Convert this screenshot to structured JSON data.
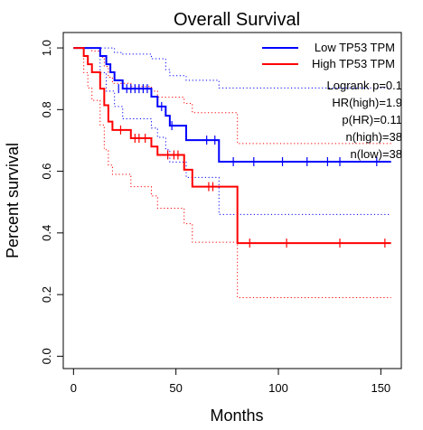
{
  "chart_data": {
    "type": "line",
    "subtype": "kaplan-meier",
    "title": "Overall Survival",
    "xlabel": "Months",
    "ylabel": "Percent survival",
    "xlim": [
      -5,
      160
    ],
    "ylim": [
      -0.04,
      1.05
    ],
    "x_ticks": [
      0,
      50,
      100,
      150
    ],
    "y_ticks": [
      0.0,
      0.2,
      0.4,
      0.6,
      0.8,
      1.0
    ],
    "x_tick_labels": [
      "0",
      "50",
      "100",
      "150"
    ],
    "y_tick_labels": [
      "0.0",
      "0.2",
      "0.4",
      "0.6",
      "0.8",
      "1.0"
    ],
    "grid": false,
    "legend_position": "top-right",
    "series": [
      {
        "name": "Low TP53 TPM",
        "color": "#0000ff",
        "steps": [
          [
            0,
            1.0
          ],
          [
            13,
            0.974
          ],
          [
            16,
            0.947
          ],
          [
            18,
            0.921
          ],
          [
            20,
            0.895
          ],
          [
            24,
            0.868
          ],
          [
            38,
            0.842
          ],
          [
            41,
            0.81
          ],
          [
            45,
            0.78
          ],
          [
            47,
            0.748
          ],
          [
            55,
            0.701
          ],
          [
            71,
            0.631
          ],
          [
            155,
            0.631
          ]
        ],
        "censored": [
          [
            22,
            0.868
          ],
          [
            26,
            0.868
          ],
          [
            28,
            0.868
          ],
          [
            30,
            0.868
          ],
          [
            32,
            0.868
          ],
          [
            34,
            0.868
          ],
          [
            36,
            0.868
          ],
          [
            43,
            0.81
          ],
          [
            48,
            0.748
          ],
          [
            65,
            0.701
          ],
          [
            69,
            0.701
          ],
          [
            78,
            0.631
          ],
          [
            88,
            0.631
          ],
          [
            102,
            0.631
          ],
          [
            114,
            0.631
          ],
          [
            124,
            0.631
          ],
          [
            130,
            0.631
          ],
          [
            148,
            0.631
          ]
        ],
        "ci_upper": [
          [
            0,
            1.0
          ],
          [
            15,
            1.0
          ],
          [
            20,
            0.985
          ],
          [
            24,
            0.98
          ],
          [
            38,
            0.965
          ],
          [
            45,
            0.93
          ],
          [
            47,
            0.91
          ],
          [
            55,
            0.895
          ],
          [
            71,
            0.87
          ],
          [
            155,
            0.87
          ]
        ],
        "ci_lower": [
          [
            0,
            1.0
          ],
          [
            13,
            0.92
          ],
          [
            16,
            0.86
          ],
          [
            20,
            0.81
          ],
          [
            24,
            0.77
          ],
          [
            38,
            0.74
          ],
          [
            41,
            0.71
          ],
          [
            45,
            0.67
          ],
          [
            47,
            0.63
          ],
          [
            55,
            0.58
          ],
          [
            71,
            0.46
          ],
          [
            155,
            0.46
          ]
        ]
      },
      {
        "name": "High TP53 TPM",
        "color": "#ff0000",
        "steps": [
          [
            0,
            1.0
          ],
          [
            5,
            0.974
          ],
          [
            7,
            0.947
          ],
          [
            9,
            0.921
          ],
          [
            13,
            0.868
          ],
          [
            15,
            0.814
          ],
          [
            17,
            0.761
          ],
          [
            19,
            0.734
          ],
          [
            28,
            0.707
          ],
          [
            38,
            0.68
          ],
          [
            41,
            0.653
          ],
          [
            54,
            0.605
          ],
          [
            58,
            0.55
          ],
          [
            80,
            0.367
          ],
          [
            155,
            0.367
          ]
        ],
        "censored": [
          [
            23,
            0.734
          ],
          [
            30,
            0.707
          ],
          [
            32,
            0.707
          ],
          [
            35,
            0.707
          ],
          [
            46,
            0.653
          ],
          [
            49,
            0.653
          ],
          [
            51,
            0.653
          ],
          [
            66,
            0.55
          ],
          [
            68,
            0.55
          ],
          [
            86,
            0.367
          ],
          [
            104,
            0.367
          ],
          [
            130,
            0.367
          ],
          [
            152,
            0.367
          ]
        ],
        "ci_upper": [
          [
            0,
            1.0
          ],
          [
            5,
            1.0
          ],
          [
            9,
            0.99
          ],
          [
            13,
            0.97
          ],
          [
            15,
            0.94
          ],
          [
            17,
            0.905
          ],
          [
            19,
            0.885
          ],
          [
            28,
            0.875
          ],
          [
            38,
            0.86
          ],
          [
            41,
            0.84
          ],
          [
            54,
            0.82
          ],
          [
            58,
            0.79
          ],
          [
            80,
            0.69
          ],
          [
            155,
            0.69
          ]
        ],
        "ci_lower": [
          [
            0,
            1.0
          ],
          [
            5,
            0.92
          ],
          [
            7,
            0.87
          ],
          [
            9,
            0.83
          ],
          [
            13,
            0.75
          ],
          [
            15,
            0.67
          ],
          [
            17,
            0.62
          ],
          [
            19,
            0.59
          ],
          [
            28,
            0.55
          ],
          [
            38,
            0.52
          ],
          [
            41,
            0.48
          ],
          [
            54,
            0.43
          ],
          [
            58,
            0.37
          ],
          [
            80,
            0.19
          ],
          [
            155,
            0.19
          ]
        ]
      }
    ],
    "annotations": [
      "Logrank p=0.1",
      "HR(high)=1.9",
      "p(HR)=0.11",
      "n(high)=38",
      "n(low)=38"
    ]
  }
}
